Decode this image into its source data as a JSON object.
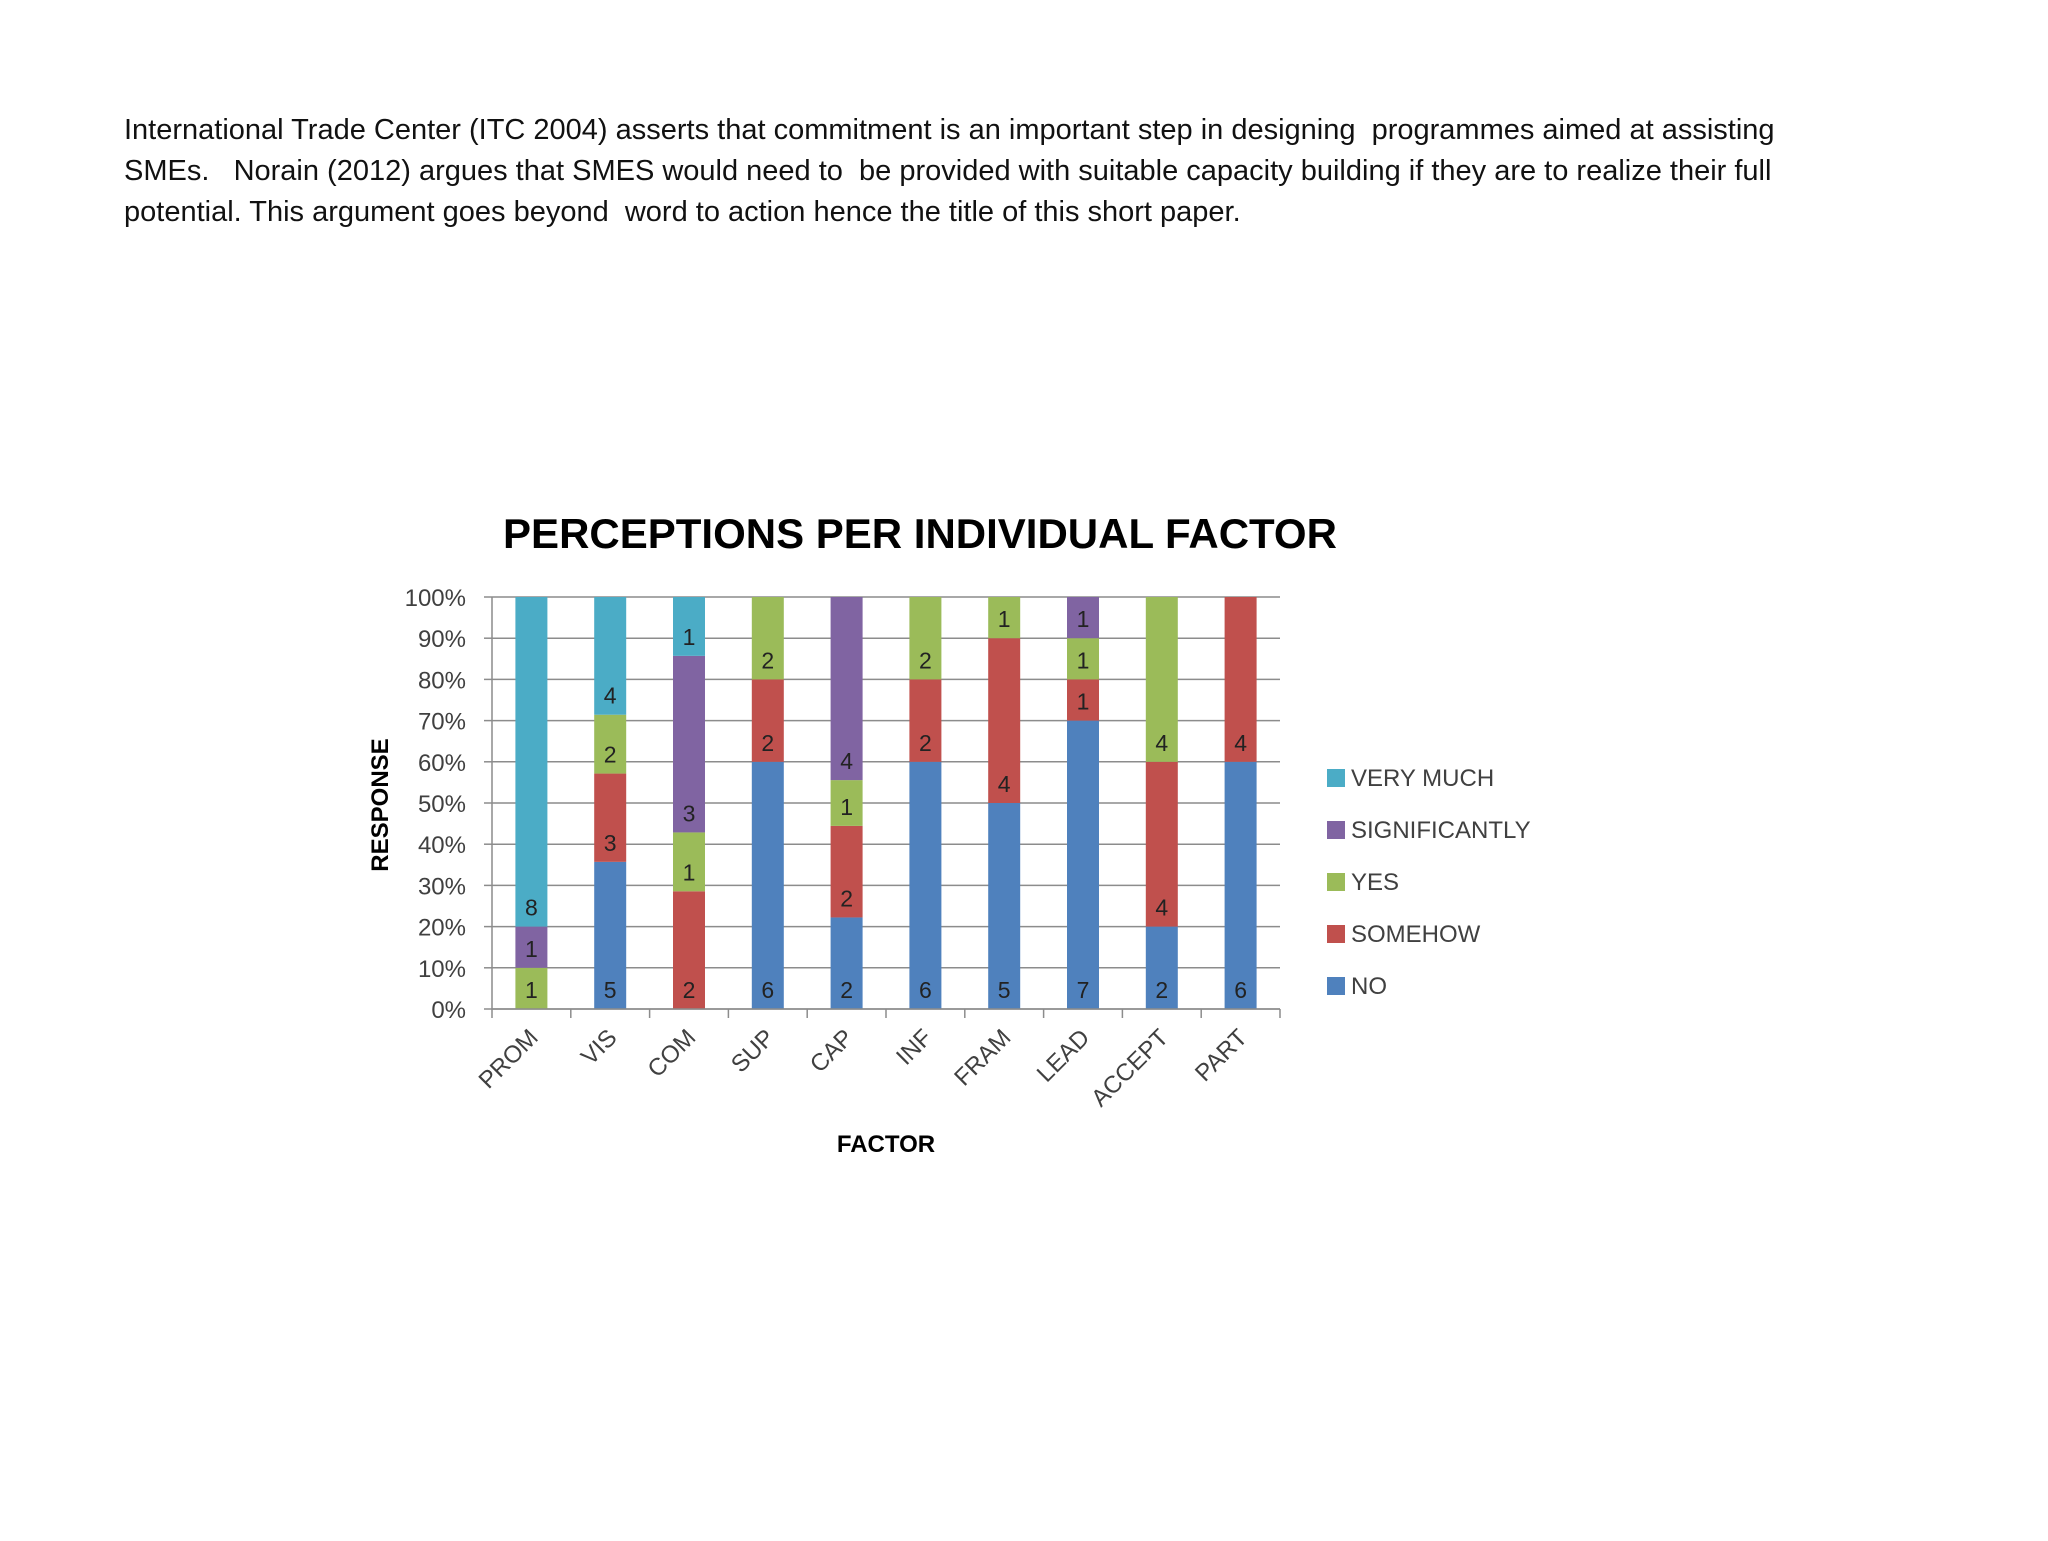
{
  "document": {
    "paragraph_lines": [
      "International Trade Center (ITC 2004) asserts that commitment is an important step in designing  programmes aimed at assisting",
      "SMEs.   Norain (2012) argues that SMES would need to  be provided with suitable capacity building if they are to realize their full",
      "potential. This argument goes beyond  word to action hence the title of this short paper."
    ]
  },
  "chart_data": {
    "type": "bar",
    "stacked": "percent",
    "title": "PERCEPTIONS PER INDIVIDUAL FACTOR",
    "xlabel": "FACTOR",
    "ylabel": "RESPONSE",
    "ylim": [
      0,
      100
    ],
    "yticks": [
      "0%",
      "10%",
      "20%",
      "30%",
      "40%",
      "50%",
      "60%",
      "70%",
      "80%",
      "90%",
      "100%"
    ],
    "categories": [
      "PROM",
      "VIS",
      "COM",
      "SUP",
      "CAP",
      "INF",
      "FRAM",
      "LEAD",
      "ACCEPT",
      "PART"
    ],
    "series": [
      {
        "name": "NO",
        "color": "#4f81bd",
        "values": [
          0,
          5,
          0,
          6,
          2,
          6,
          5,
          7,
          2,
          6
        ]
      },
      {
        "name": "SOMEHOW",
        "color": "#c0504d",
        "values": [
          0,
          3,
          2,
          2,
          2,
          2,
          4,
          1,
          4,
          4
        ]
      },
      {
        "name": "YES",
        "color": "#9bbb59",
        "values": [
          1,
          2,
          1,
          2,
          1,
          2,
          1,
          1,
          4,
          0
        ]
      },
      {
        "name": "SIGNIFICANTLY",
        "color": "#8064a2",
        "values": [
          1,
          0,
          3,
          0,
          4,
          0,
          0,
          1,
          0,
          0
        ]
      },
      {
        "name": "VERY MUCH",
        "color": "#4bacc6",
        "values": [
          8,
          4,
          1,
          0,
          0,
          0,
          0,
          0,
          0,
          0
        ]
      }
    ],
    "legend_order": [
      "VERY MUCH",
      "SIGNIFICANTLY",
      "YES",
      "SOMEHOW",
      "NO"
    ],
    "legend_position": "right",
    "grid": true
  }
}
